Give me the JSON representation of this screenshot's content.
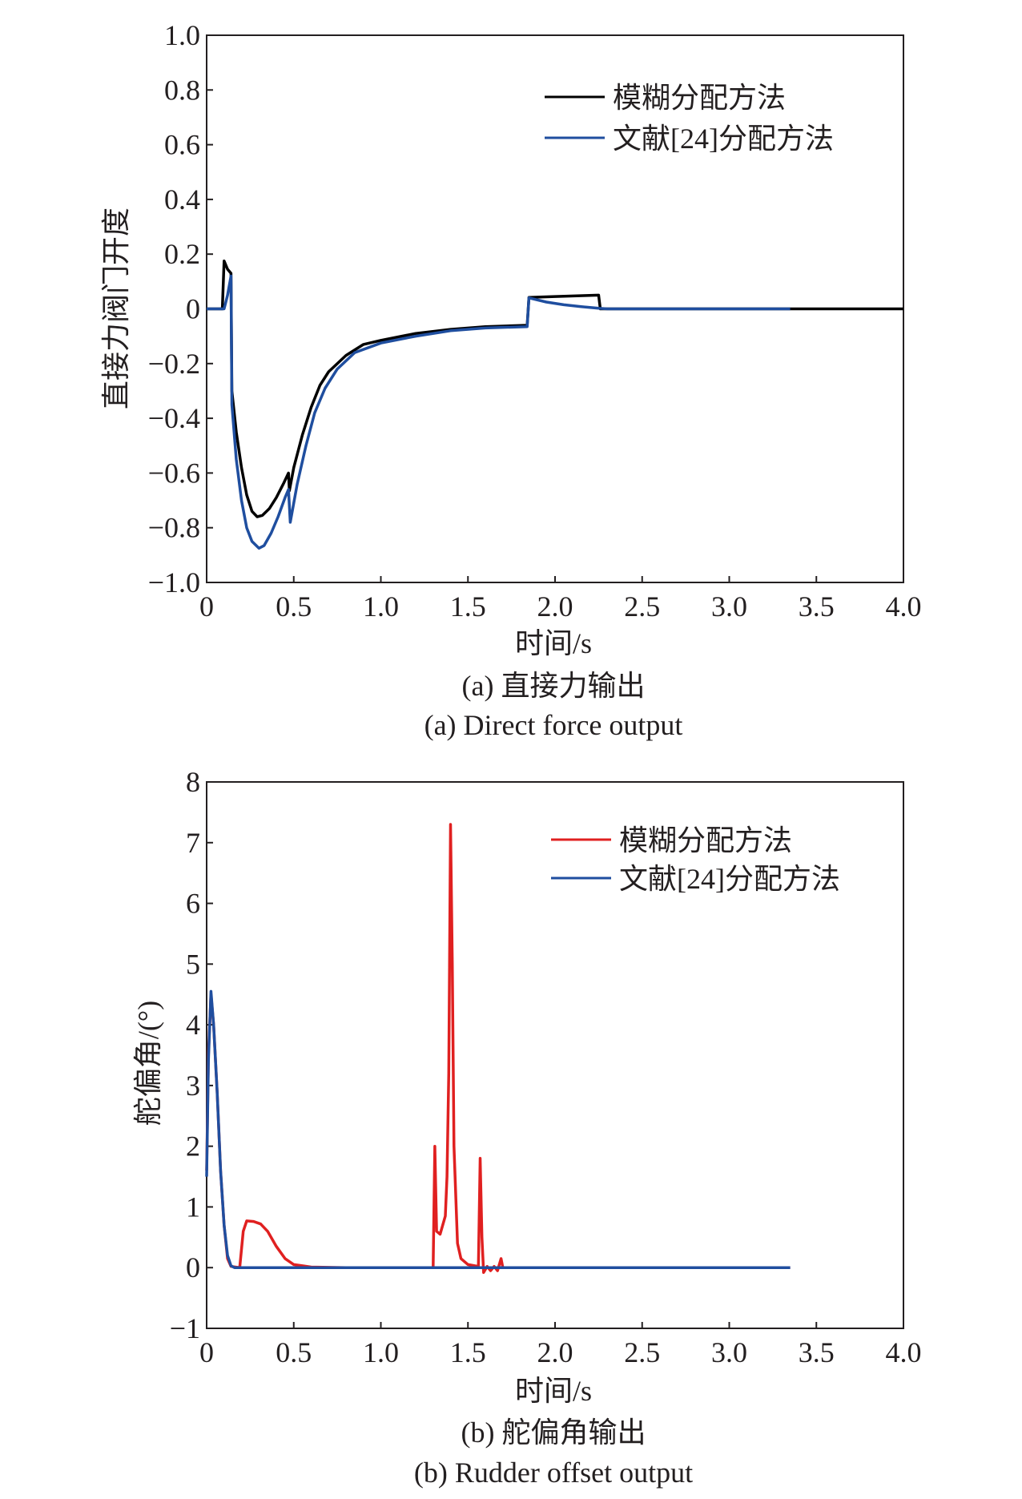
{
  "chart_data": [
    {
      "type": "line",
      "title": "",
      "xlabel": "时间/s",
      "ylabel": "直接力阀门开度",
      "caption_cn": "(a) 直接力输出",
      "caption_en": "(a) Direct force output",
      "xlim": [
        0,
        4.0
      ],
      "ylim": [
        -1.0,
        1.0
      ],
      "xticks": [
        "0",
        "0.5",
        "1.0",
        "1.5",
        "2.0",
        "2.5",
        "3.0",
        "3.5",
        "4.0"
      ],
      "yticks": [
        "−1.0",
        "−0.8",
        "−0.6",
        "−0.4",
        "−0.2",
        "0",
        "0.2",
        "0.4",
        "0.6",
        "0.8",
        "1.0"
      ],
      "grid": false,
      "legend_position": "top-right",
      "series": [
        {
          "name": "模糊分配方法",
          "color": "#000000",
          "points": [
            [
              0,
              0
            ],
            [
              0.09,
              0
            ],
            [
              0.1,
              0.175
            ],
            [
              0.12,
              0.145
            ],
            [
              0.14,
              0.13
            ],
            [
              0.145,
              -0.3
            ],
            [
              0.17,
              -0.45
            ],
            [
              0.2,
              -0.58
            ],
            [
              0.23,
              -0.68
            ],
            [
              0.26,
              -0.74
            ],
            [
              0.29,
              -0.76
            ],
            [
              0.32,
              -0.755
            ],
            [
              0.36,
              -0.73
            ],
            [
              0.4,
              -0.69
            ],
            [
              0.44,
              -0.64
            ],
            [
              0.47,
              -0.6
            ],
            [
              0.475,
              -0.665
            ],
            [
              0.5,
              -0.58
            ],
            [
              0.55,
              -0.46
            ],
            [
              0.6,
              -0.36
            ],
            [
              0.65,
              -0.28
            ],
            [
              0.7,
              -0.23
            ],
            [
              0.8,
              -0.17
            ],
            [
              0.9,
              -0.13
            ],
            [
              1.0,
              -0.115
            ],
            [
              1.2,
              -0.09
            ],
            [
              1.4,
              -0.075
            ],
            [
              1.6,
              -0.065
            ],
            [
              1.84,
              -0.06
            ],
            [
              1.85,
              0.042
            ],
            [
              2.0,
              0.045
            ],
            [
              2.25,
              0.05
            ],
            [
              2.26,
              0
            ],
            [
              2.5,
              0
            ],
            [
              3.0,
              0
            ],
            [
              3.5,
              0
            ],
            [
              4.0,
              0
            ]
          ]
        },
        {
          "name": "文献[24]分配方法",
          "color": "#1f4e9f",
          "points": [
            [
              0,
              0
            ],
            [
              0.1,
              0
            ],
            [
              0.12,
              0.05
            ],
            [
              0.14,
              0.12
            ],
            [
              0.145,
              -0.35
            ],
            [
              0.17,
              -0.55
            ],
            [
              0.2,
              -0.7
            ],
            [
              0.23,
              -0.8
            ],
            [
              0.26,
              -0.85
            ],
            [
              0.3,
              -0.875
            ],
            [
              0.33,
              -0.865
            ],
            [
              0.37,
              -0.82
            ],
            [
              0.41,
              -0.76
            ],
            [
              0.45,
              -0.69
            ],
            [
              0.47,
              -0.66
            ],
            [
              0.48,
              -0.78
            ],
            [
              0.52,
              -0.64
            ],
            [
              0.57,
              -0.5
            ],
            [
              0.62,
              -0.38
            ],
            [
              0.68,
              -0.29
            ],
            [
              0.75,
              -0.22
            ],
            [
              0.85,
              -0.16
            ],
            [
              1.0,
              -0.125
            ],
            [
              1.2,
              -0.1
            ],
            [
              1.4,
              -0.08
            ],
            [
              1.6,
              -0.07
            ],
            [
              1.84,
              -0.065
            ],
            [
              1.85,
              0.04
            ],
            [
              1.95,
              0.025
            ],
            [
              2.05,
              0.015
            ],
            [
              2.15,
              0.008
            ],
            [
              2.25,
              0.002
            ],
            [
              2.3,
              0
            ],
            [
              2.5,
              0
            ],
            [
              3.0,
              0
            ],
            [
              3.35,
              0
            ]
          ]
        }
      ]
    },
    {
      "type": "line",
      "title": "",
      "xlabel": "时间/s",
      "ylabel": "舵偏角/(°)",
      "caption_cn": "(b) 舵偏角输出",
      "caption_en": "(b) Rudder offset output",
      "xlim": [
        0,
        4.0
      ],
      "ylim": [
        -1,
        8
      ],
      "xticks": [
        "0",
        "0.5",
        "1.0",
        "1.5",
        "2.0",
        "2.5",
        "3.0",
        "3.5",
        "4.0"
      ],
      "yticks": [
        "−1",
        "0",
        "1",
        "2",
        "3",
        "4",
        "5",
        "6",
        "7",
        "8"
      ],
      "grid": false,
      "legend_position": "top-right",
      "series": [
        {
          "name": "模糊分配方法",
          "color": "#e02020",
          "points": [
            [
              0,
              1.6
            ],
            [
              0.01,
              3.5
            ],
            [
              0.025,
              4.5
            ],
            [
              0.04,
              4.0
            ],
            [
              0.06,
              2.9
            ],
            [
              0.08,
              1.6
            ],
            [
              0.1,
              0.7
            ],
            [
              0.12,
              0.15
            ],
            [
              0.14,
              0.02
            ],
            [
              0.19,
              0
            ],
            [
              0.21,
              0.6
            ],
            [
              0.23,
              0.77
            ],
            [
              0.27,
              0.76
            ],
            [
              0.31,
              0.72
            ],
            [
              0.35,
              0.6
            ],
            [
              0.4,
              0.35
            ],
            [
              0.45,
              0.15
            ],
            [
              0.5,
              0.05
            ],
            [
              0.6,
              0.01
            ],
            [
              0.8,
              0
            ],
            [
              1.0,
              0
            ],
            [
              1.2,
              0
            ],
            [
              1.3,
              0
            ],
            [
              1.31,
              2.0
            ],
            [
              1.32,
              0.6
            ],
            [
              1.34,
              0.55
            ],
            [
              1.37,
              0.85
            ],
            [
              1.38,
              1.5
            ],
            [
              1.39,
              3.2
            ],
            [
              1.4,
              7.3
            ],
            [
              1.41,
              5.0
            ],
            [
              1.42,
              2.0
            ],
            [
              1.44,
              0.4
            ],
            [
              1.46,
              0.15
            ],
            [
              1.5,
              0.05
            ],
            [
              1.56,
              0.02
            ],
            [
              1.57,
              1.8
            ],
            [
              1.58,
              0.5
            ],
            [
              1.59,
              -0.08
            ],
            [
              1.61,
              0.02
            ],
            [
              1.63,
              -0.05
            ],
            [
              1.65,
              0.02
            ],
            [
              1.67,
              -0.05
            ],
            [
              1.69,
              0.15
            ],
            [
              1.7,
              0
            ],
            [
              1.8,
              0
            ],
            [
              2.0,
              0
            ],
            [
              2.5,
              0
            ],
            [
              3.0,
              0
            ],
            [
              3.35,
              0
            ]
          ]
        },
        {
          "name": "文献[24]分配方法",
          "color": "#1f4e9f",
          "points": [
            [
              0,
              1.5
            ],
            [
              0.01,
              3.4
            ],
            [
              0.025,
              4.55
            ],
            [
              0.04,
              4.0
            ],
            [
              0.06,
              2.9
            ],
            [
              0.08,
              1.6
            ],
            [
              0.1,
              0.7
            ],
            [
              0.12,
              0.2
            ],
            [
              0.14,
              0.03
            ],
            [
              0.16,
              0
            ],
            [
              0.5,
              0
            ],
            [
              1.0,
              0
            ],
            [
              1.5,
              0
            ],
            [
              2.0,
              0
            ],
            [
              2.5,
              0
            ],
            [
              3.0,
              0
            ],
            [
              3.35,
              0
            ]
          ]
        }
      ]
    }
  ]
}
